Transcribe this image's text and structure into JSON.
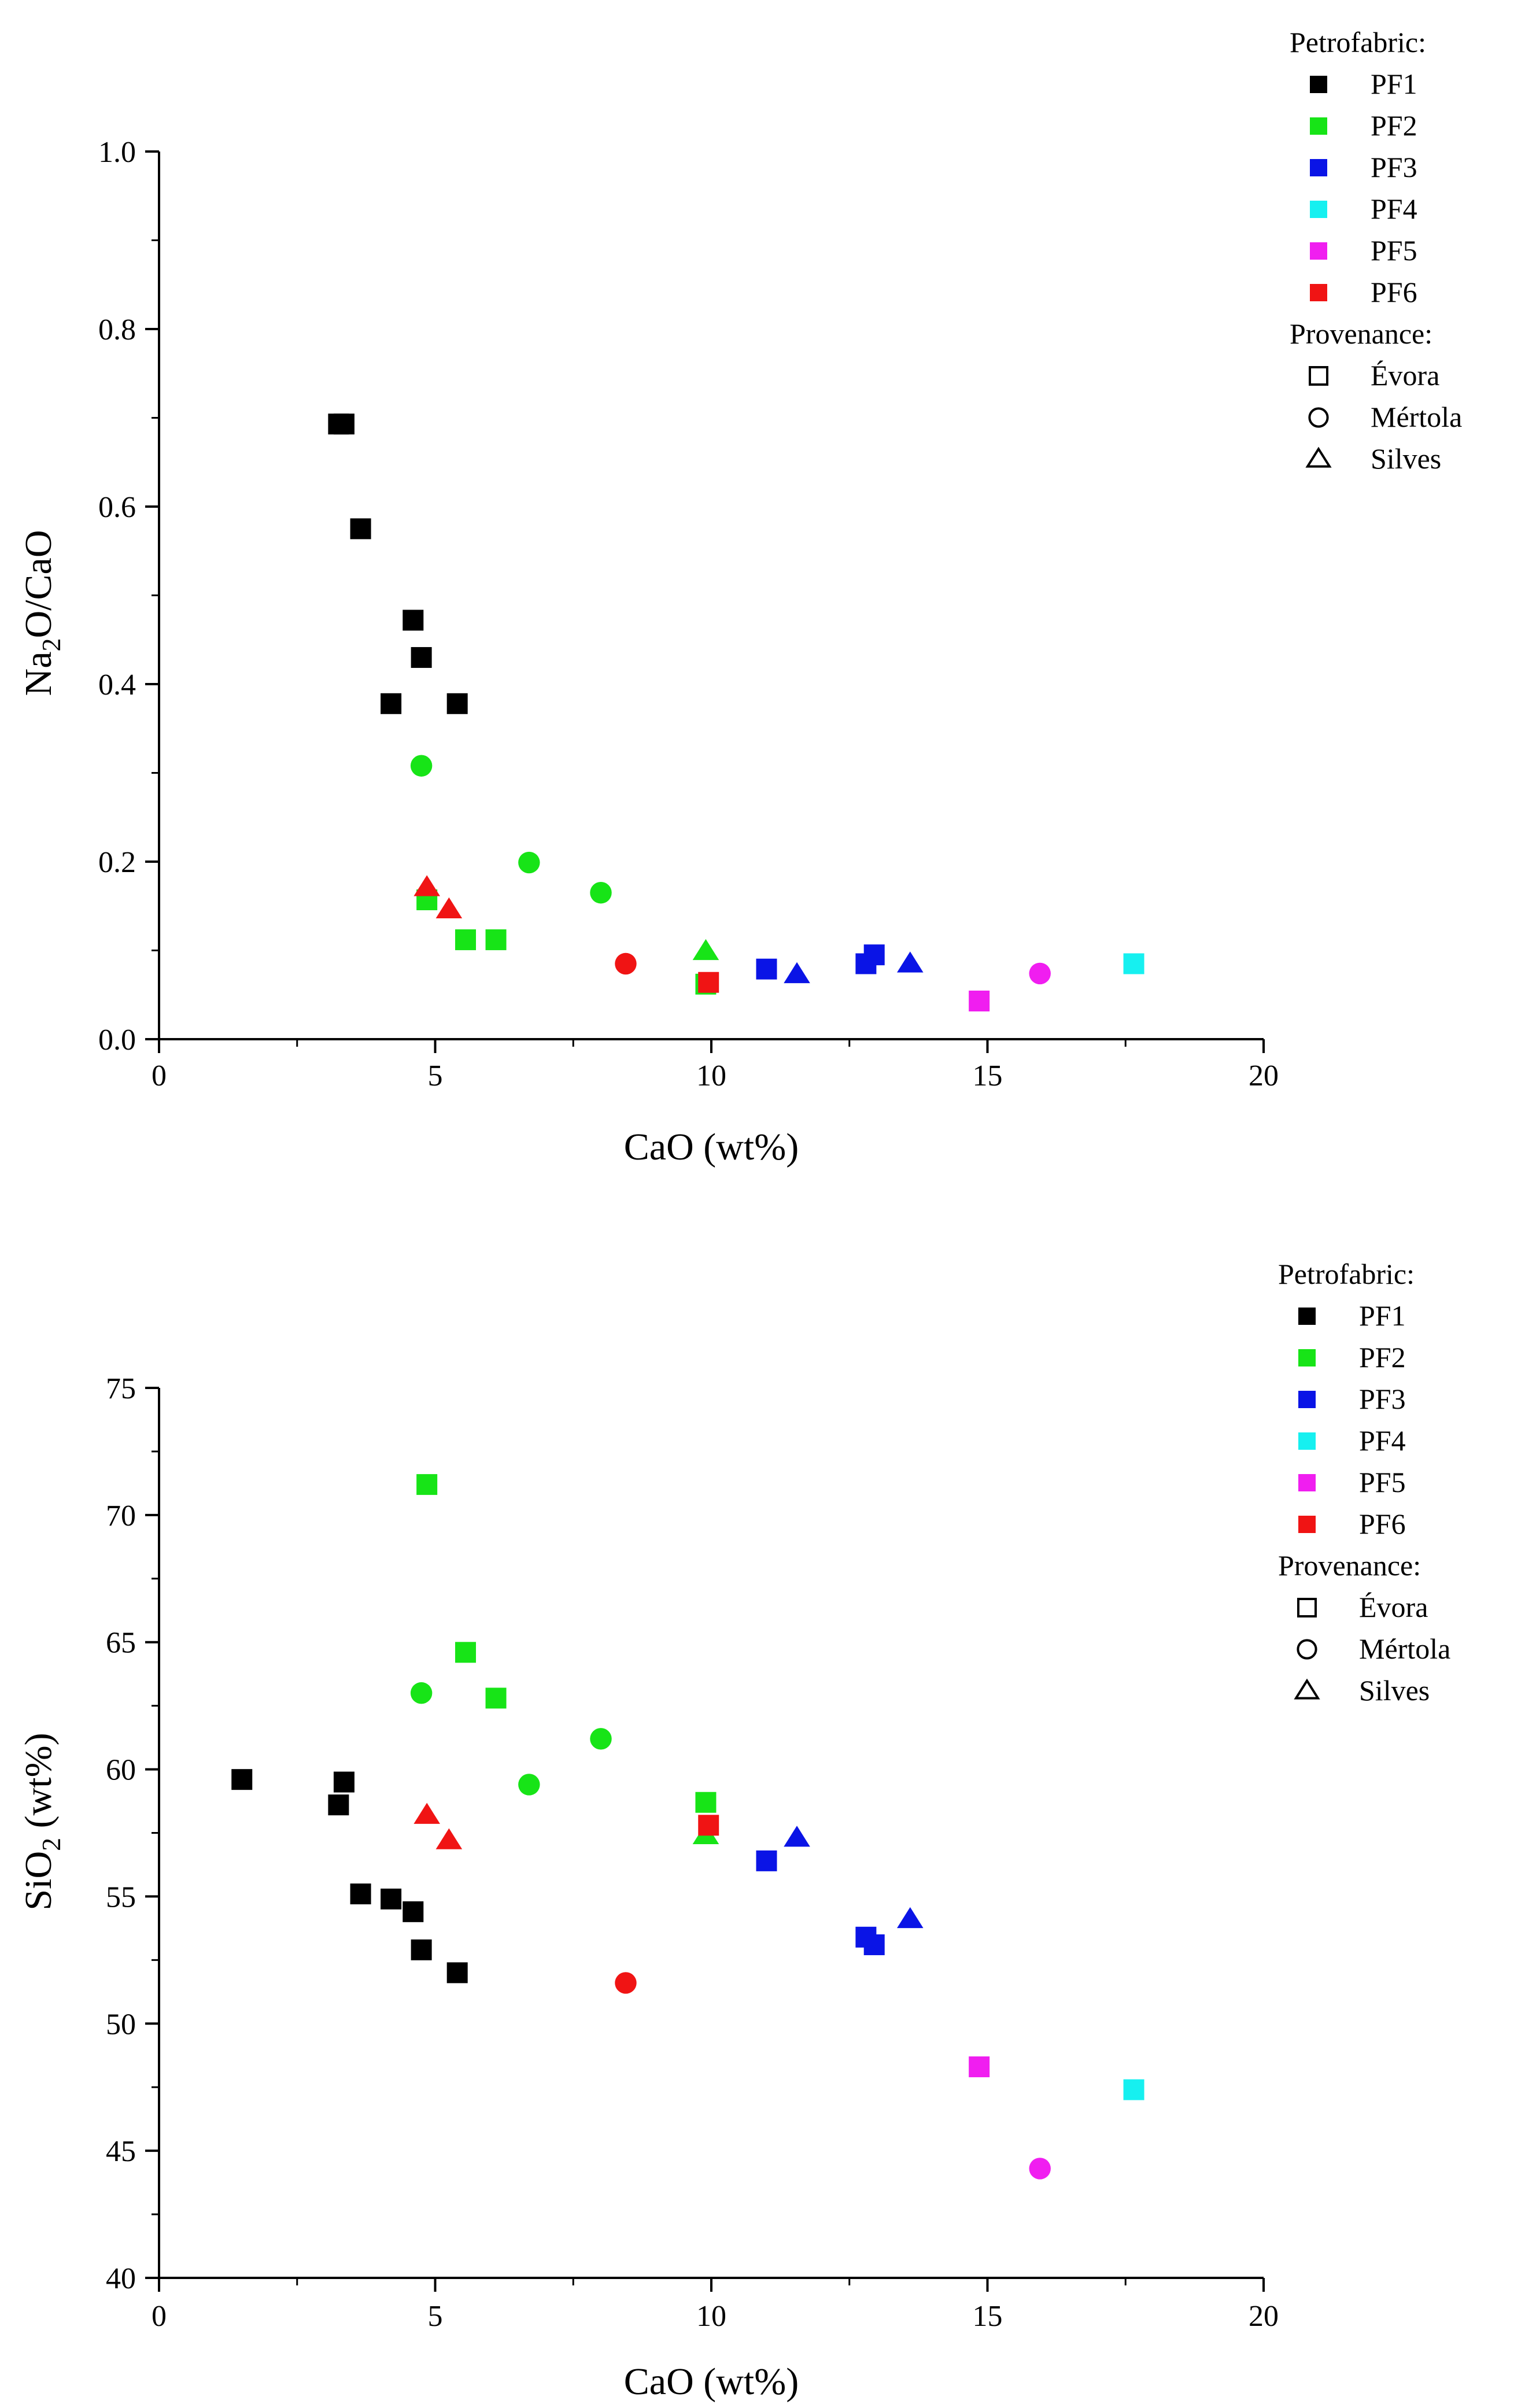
{
  "colors": {
    "PF1": "#000000",
    "PF2": "#17e417",
    "PF3": "#0a14e6",
    "PF4": "#16f0f0",
    "PF5": "#f01ef0",
    "PF6": "#f01414"
  },
  "chart_data": [
    {
      "type": "scatter",
      "xlabel": "CaO (wt%)",
      "ylabel": "Na2O/CaO",
      "ylabel_parts": {
        "main": "Na",
        "sub": "2",
        "rest": "O/CaO"
      },
      "xlim": [
        0,
        20
      ],
      "ylim": [
        0,
        1.0
      ],
      "xticks": [
        "0",
        "5",
        "10",
        "15",
        "20"
      ],
      "yticks": [
        "0.0",
        "0.2",
        "0.4",
        "0.6",
        "0.8",
        "1.0"
      ],
      "legend": {
        "petrofabric_title": "Petrofabric:",
        "petrofabric": [
          "PF1",
          "PF2",
          "PF3",
          "PF4",
          "PF5",
          "PF6"
        ],
        "provenance_title": "Provenance:",
        "provenance": [
          {
            "label": "Évora",
            "marker": "square"
          },
          {
            "label": "Mértola",
            "marker": "circle"
          },
          {
            "label": "Silves",
            "marker": "triangle"
          }
        ]
      },
      "points": [
        {
          "x": 3.25,
          "y": 0.693,
          "pf": "PF1",
          "prov": "Évora"
        },
        {
          "x": 3.35,
          "y": 0.693,
          "pf": "PF1",
          "prov": "Évora"
        },
        {
          "x": 3.65,
          "y": 0.575,
          "pf": "PF1",
          "prov": "Évora"
        },
        {
          "x": 4.6,
          "y": 0.472,
          "pf": "PF1",
          "prov": "Évora"
        },
        {
          "x": 4.75,
          "y": 0.43,
          "pf": "PF1",
          "prov": "Évora"
        },
        {
          "x": 4.2,
          "y": 0.378,
          "pf": "PF1",
          "prov": "Évora"
        },
        {
          "x": 5.4,
          "y": 0.378,
          "pf": "PF1",
          "prov": "Évora"
        },
        {
          "x": 4.75,
          "y": 0.308,
          "pf": "PF2",
          "prov": "Mértola"
        },
        {
          "x": 6.7,
          "y": 0.199,
          "pf": "PF2",
          "prov": "Mértola"
        },
        {
          "x": 8.0,
          "y": 0.165,
          "pf": "PF2",
          "prov": "Mértola"
        },
        {
          "x": 4.85,
          "y": 0.157,
          "pf": "PF2",
          "prov": "Évora"
        },
        {
          "x": 5.55,
          "y": 0.112,
          "pf": "PF2",
          "prov": "Évora"
        },
        {
          "x": 6.1,
          "y": 0.112,
          "pf": "PF2",
          "prov": "Évora"
        },
        {
          "x": 9.9,
          "y": 0.062,
          "pf": "PF2",
          "prov": "Évora"
        },
        {
          "x": 9.9,
          "y": 0.099,
          "pf": "PF2",
          "prov": "Silves"
        },
        {
          "x": 11.0,
          "y": 0.079,
          "pf": "PF3",
          "prov": "Évora"
        },
        {
          "x": 11.55,
          "y": 0.073,
          "pf": "PF3",
          "prov": "Silves"
        },
        {
          "x": 12.8,
          "y": 0.085,
          "pf": "PF3",
          "prov": "Évora"
        },
        {
          "x": 12.95,
          "y": 0.095,
          "pf": "PF3",
          "prov": "Évora"
        },
        {
          "x": 13.6,
          "y": 0.085,
          "pf": "PF3",
          "prov": "Silves"
        },
        {
          "x": 17.65,
          "y": 0.085,
          "pf": "PF4",
          "prov": "Évora"
        },
        {
          "x": 14.85,
          "y": 0.043,
          "pf": "PF5",
          "prov": "Évora"
        },
        {
          "x": 15.95,
          "y": 0.074,
          "pf": "PF5",
          "prov": "Mértola"
        },
        {
          "x": 4.85,
          "y": 0.171,
          "pf": "PF6",
          "prov": "Silves"
        },
        {
          "x": 5.25,
          "y": 0.146,
          "pf": "PF6",
          "prov": "Silves"
        },
        {
          "x": 8.45,
          "y": 0.085,
          "pf": "PF6",
          "prov": "Mértola"
        },
        {
          "x": 9.95,
          "y": 0.064,
          "pf": "PF6",
          "prov": "Évora"
        }
      ]
    },
    {
      "type": "scatter",
      "xlabel": "CaO (wt%)",
      "ylabel": "SiO2 (wt%)",
      "ylabel_parts": {
        "main": "SiO",
        "sub": "2",
        "rest": " (wt%)"
      },
      "xlim": [
        0,
        20
      ],
      "ylim": [
        40,
        75
      ],
      "xticks": [
        "0",
        "5",
        "10",
        "15",
        "20"
      ],
      "yticks": [
        "40",
        "45",
        "50",
        "55",
        "60",
        "65",
        "70",
        "75"
      ],
      "legend": {
        "petrofabric_title": "Petrofabric:",
        "petrofabric": [
          "PF1",
          "PF2",
          "PF3",
          "PF4",
          "PF5",
          "PF6"
        ],
        "provenance_title": "Provenance:",
        "provenance": [
          {
            "label": "Évora",
            "marker": "square"
          },
          {
            "label": "Mértola",
            "marker": "circle"
          },
          {
            "label": "Silves",
            "marker": "triangle"
          }
        ]
      },
      "points": [
        {
          "x": 1.5,
          "y": 59.6,
          "pf": "PF1",
          "prov": "Évora"
        },
        {
          "x": 3.25,
          "y": 58.6,
          "pf": "PF1",
          "prov": "Évora"
        },
        {
          "x": 3.35,
          "y": 59.5,
          "pf": "PF1",
          "prov": "Évora"
        },
        {
          "x": 3.65,
          "y": 55.1,
          "pf": "PF1",
          "prov": "Évora"
        },
        {
          "x": 4.2,
          "y": 54.9,
          "pf": "PF1",
          "prov": "Évora"
        },
        {
          "x": 4.6,
          "y": 54.4,
          "pf": "PF1",
          "prov": "Évora"
        },
        {
          "x": 4.75,
          "y": 52.9,
          "pf": "PF1",
          "prov": "Évora"
        },
        {
          "x": 5.4,
          "y": 52.0,
          "pf": "PF1",
          "prov": "Évora"
        },
        {
          "x": 4.85,
          "y": 71.2,
          "pf": "PF2",
          "prov": "Évora"
        },
        {
          "x": 5.55,
          "y": 64.6,
          "pf": "PF2",
          "prov": "Évora"
        },
        {
          "x": 6.1,
          "y": 62.8,
          "pf": "PF2",
          "prov": "Évora"
        },
        {
          "x": 4.75,
          "y": 63.0,
          "pf": "PF2",
          "prov": "Mértola"
        },
        {
          "x": 8.0,
          "y": 61.2,
          "pf": "PF2",
          "prov": "Mértola"
        },
        {
          "x": 6.7,
          "y": 59.4,
          "pf": "PF2",
          "prov": "Mértola"
        },
        {
          "x": 9.9,
          "y": 58.7,
          "pf": "PF2",
          "prov": "Évora"
        },
        {
          "x": 9.9,
          "y": 57.4,
          "pf": "PF2",
          "prov": "Silves"
        },
        {
          "x": 11.0,
          "y": 56.4,
          "pf": "PF3",
          "prov": "Évora"
        },
        {
          "x": 11.55,
          "y": 57.3,
          "pf": "PF3",
          "prov": "Silves"
        },
        {
          "x": 12.8,
          "y": 53.4,
          "pf": "PF3",
          "prov": "Évora"
        },
        {
          "x": 12.95,
          "y": 53.1,
          "pf": "PF3",
          "prov": "Évora"
        },
        {
          "x": 13.6,
          "y": 54.1,
          "pf": "PF3",
          "prov": "Silves"
        },
        {
          "x": 17.65,
          "y": 47.4,
          "pf": "PF4",
          "prov": "Évora"
        },
        {
          "x": 14.85,
          "y": 48.3,
          "pf": "PF5",
          "prov": "Évora"
        },
        {
          "x": 15.95,
          "y": 44.3,
          "pf": "PF5",
          "prov": "Mértola"
        },
        {
          "x": 4.85,
          "y": 58.2,
          "pf": "PF6",
          "prov": "Silves"
        },
        {
          "x": 5.25,
          "y": 57.2,
          "pf": "PF6",
          "prov": "Silves"
        },
        {
          "x": 8.45,
          "y": 51.6,
          "pf": "PF6",
          "prov": "Mértola"
        },
        {
          "x": 9.95,
          "y": 57.8,
          "pf": "PF6",
          "prov": "Évora"
        }
      ]
    }
  ]
}
